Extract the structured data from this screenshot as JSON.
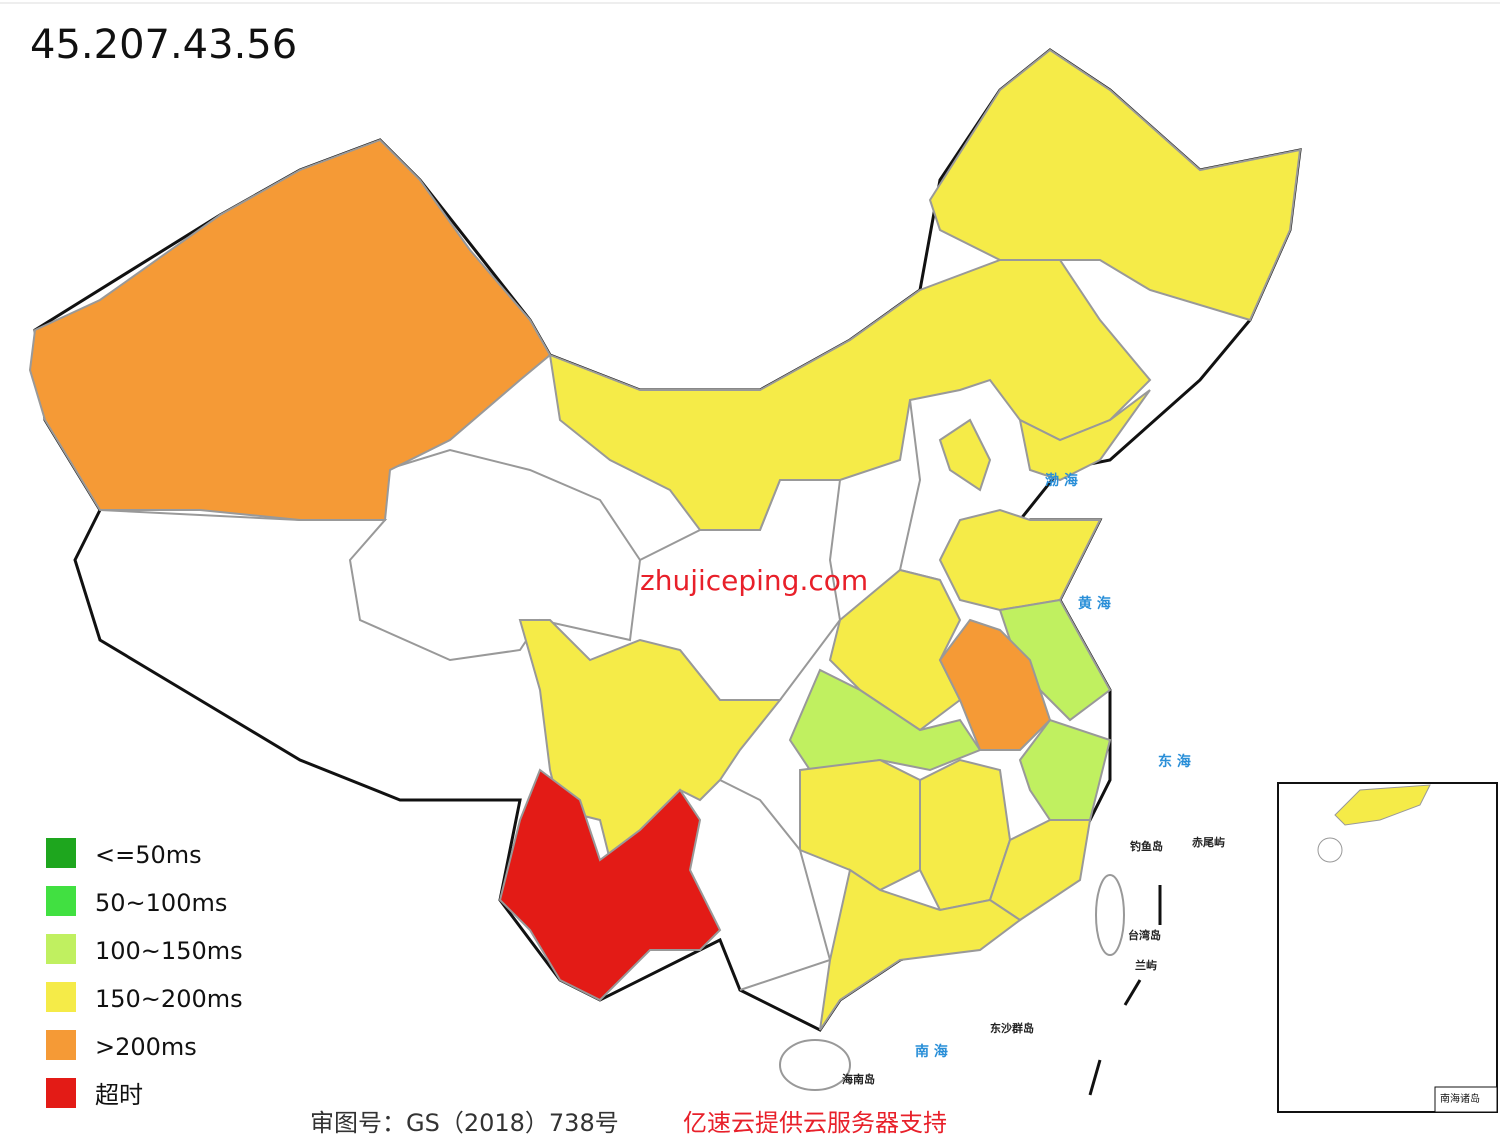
{
  "title": "45.207.43.56",
  "watermark": "zhujiceping.com",
  "legend": [
    {
      "label": "<=50ms",
      "color": "#1ea61e"
    },
    {
      "label": "50~100ms",
      "color": "#41e041"
    },
    {
      "label": "100~150ms",
      "color": "#c0f060"
    },
    {
      "label": "150~200ms",
      "color": "#f5eb48"
    },
    {
      "label": ">200ms",
      "color": "#f59a36"
    },
    {
      "label": "超时",
      "color": "#e31b16"
    }
  ],
  "sea_labels": [
    "渤 海",
    "黄 海",
    "东 海",
    "南 海"
  ],
  "island_labels": [
    "台湾岛",
    "海南岛",
    "钓鱼岛",
    "赤尾屿",
    "东沙群岛",
    "兰屿"
  ],
  "inset_title": "南海诸岛",
  "footer": {
    "approval": "审图号：GS（2018）738号",
    "sponsor": "亿速云提供云服务器支持"
  }
}
